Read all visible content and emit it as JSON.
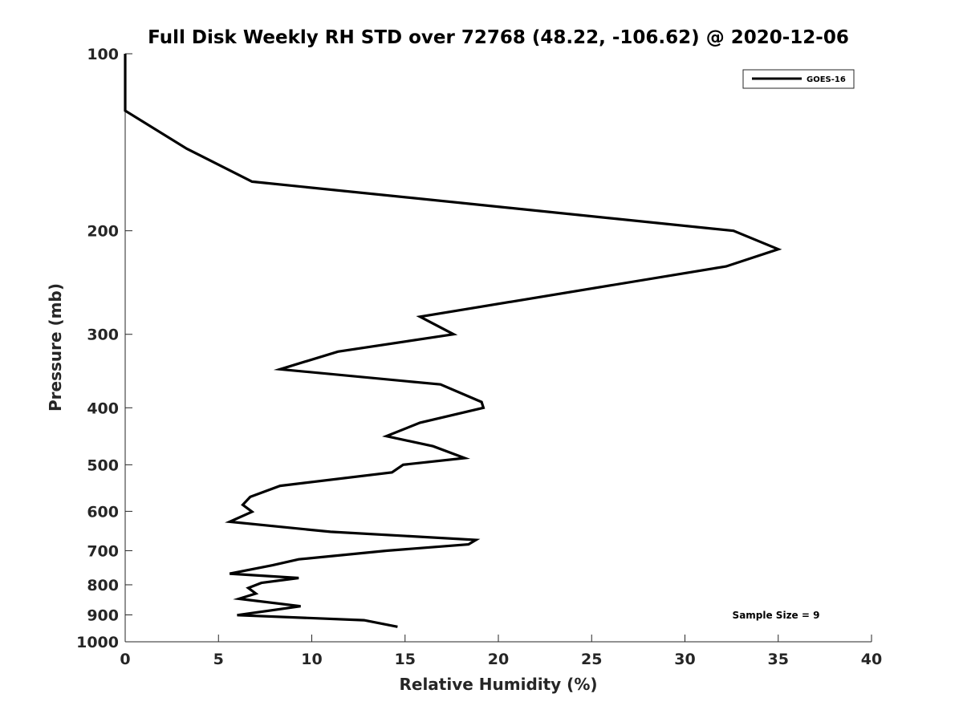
{
  "chart_data": {
    "type": "line",
    "title": "Full Disk Weekly RH STD over 72768 (48.22, -106.62) @ 2020-12-06",
    "xlabel": "Relative Humidity (%)",
    "ylabel": "Pressure (mb)",
    "xlim": [
      0,
      40
    ],
    "ylim": [
      100,
      1000
    ],
    "yscale": "log",
    "yreversed": true,
    "xticks": [
      0,
      5,
      10,
      15,
      20,
      25,
      30,
      35,
      40
    ],
    "xtick_labels": [
      "0",
      "5",
      "10",
      "15",
      "20",
      "25",
      "30",
      "35",
      "40"
    ],
    "yticks": [
      100,
      200,
      300,
      400,
      500,
      600,
      700,
      800,
      900,
      1000
    ],
    "ytick_labels": [
      "100",
      "200",
      "300",
      "400",
      "500",
      "600",
      "700",
      "800",
      "900",
      "1000"
    ],
    "grid": false,
    "legend_position": "top-right",
    "annotation": "Sample Size = 9",
    "line_color": "#000000",
    "series": [
      {
        "name": "GOES-16",
        "x": [
          0,
          0,
          3.3,
          6.8,
          18.5,
          32.6,
          35.0,
          32.2,
          15.8,
          17.6,
          11.4,
          8.3,
          16.9,
          19.1,
          19.2,
          15.8,
          14.0,
          16.5,
          18.2,
          14.9,
          14.3,
          8.3,
          6.7,
          6.3,
          6.8,
          5.6,
          11.0,
          18.8,
          18.4,
          14.0,
          9.3,
          7.9,
          5.6,
          9.3,
          7.3,
          6.6,
          7.0,
          6.1,
          9.4,
          6.0,
          12.8,
          14.6
        ],
        "y": [
          100,
          125,
          145,
          165,
          180,
          200,
          215,
          230,
          280,
          300,
          321,
          344,
          365,
          391,
          400,
          424,
          447,
          465,
          487,
          500,
          515,
          543,
          567,
          585,
          601,
          625,
          650,
          671,
          683,
          700,
          724,
          741,
          766,
          779,
          794,
          810,
          828,
          845,
          870,
          901,
          919,
          943
        ]
      }
    ]
  }
}
